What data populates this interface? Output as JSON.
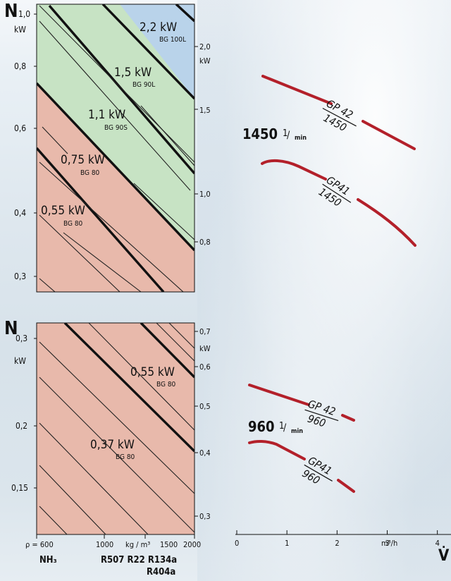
{
  "chart_data": [
    {
      "type": "line",
      "panel": "top-left power chart",
      "left_axis": {
        "label": "N",
        "unit": "kW",
        "ticks": [
          "1,0",
          "0,8",
          "0,6",
          "0,4",
          "0,3"
        ]
      },
      "right_axis": {
        "ticks": [
          "2,0",
          "1,5",
          "1,0",
          "0,8"
        ],
        "unit": "kW"
      },
      "regions": [
        {
          "power": "2,2 kW",
          "motor": "BG 100L",
          "color": "#b9d3ea"
        },
        {
          "power": "1,5 kW",
          "motor": "BG 90L",
          "color": "#c7e3c4"
        },
        {
          "power": "1,1 kW",
          "motor": "BG 90S",
          "color": "#c7e3c4"
        },
        {
          "power": "0,75 kW",
          "motor": "BG 80",
          "color": "#e8b9ab"
        },
        {
          "power": "0,55 kW",
          "motor": "BG 80",
          "color": "#e8b9ab"
        }
      ]
    },
    {
      "type": "line",
      "panel": "bottom-left power chart",
      "left_axis": {
        "label": "N",
        "unit": "kW",
        "ticks": [
          "0,3",
          "0,2",
          "0,15"
        ]
      },
      "right_axis": {
        "ticks": [
          "0,7",
          "0,6",
          "0,5",
          "0,4",
          "0,3"
        ],
        "unit": "kW"
      },
      "regions": [
        {
          "power": "0,55 kW",
          "motor": "BG 80",
          "color": "#e8b9ab"
        },
        {
          "power": "0,37 kW",
          "motor": "BG 80",
          "color": "#e8b9ab"
        }
      ]
    },
    {
      "type": "line",
      "panel": "pump curves",
      "speeds": [
        {
          "label": "1450",
          "unit_super": "1",
          "unit_sub": "min",
          "series": [
            {
              "name": "GP 42",
              "rpm": "1450",
              "x": [
                0.5,
                1.3,
                2.2,
                3.6
              ],
              "y": [
                1.8,
                1.6,
                1.4,
                1.05
              ]
            },
            {
              "name": "GP41",
              "rpm": "1450",
              "x": [
                0.5,
                1.0,
                2.2,
                3.6
              ],
              "y": [
                1.25,
                1.2,
                1.05,
                0.75
              ]
            }
          ]
        },
        {
          "label": "960",
          "unit_super": "1",
          "unit_sub": "min",
          "series": [
            {
              "name": "GP 42",
              "rpm": "960",
              "x": [
                0.3,
                1.5,
                2.4
              ],
              "y": [
                0.56,
                0.52,
                0.48
              ]
            },
            {
              "name": "GP41",
              "rpm": "960",
              "x": [
                0.3,
                1.5,
                2.4
              ],
              "y": [
                0.43,
                0.39,
                0.33
              ]
            }
          ]
        }
      ],
      "x_axis": {
        "ticks": [
          "0",
          "1",
          "2",
          "3",
          "4"
        ],
        "unit": "m³/h",
        "label": "V̇",
        "xlim": [
          0,
          4.3
        ]
      }
    }
  ],
  "density_axis": {
    "ticks": [
      "ρ = 600",
      "1000",
      "kg / m³",
      "1500",
      "2000"
    ]
  },
  "refrigerants": {
    "left": "NH₃",
    "middle": "R507  R22  R134a",
    "middle2": "R404a"
  },
  "colors": {
    "red_curve": "#b3202a",
    "blue_region": "#b9d3ea",
    "green_region": "#c7e3c4",
    "pink_region": "#e8b9ab"
  }
}
